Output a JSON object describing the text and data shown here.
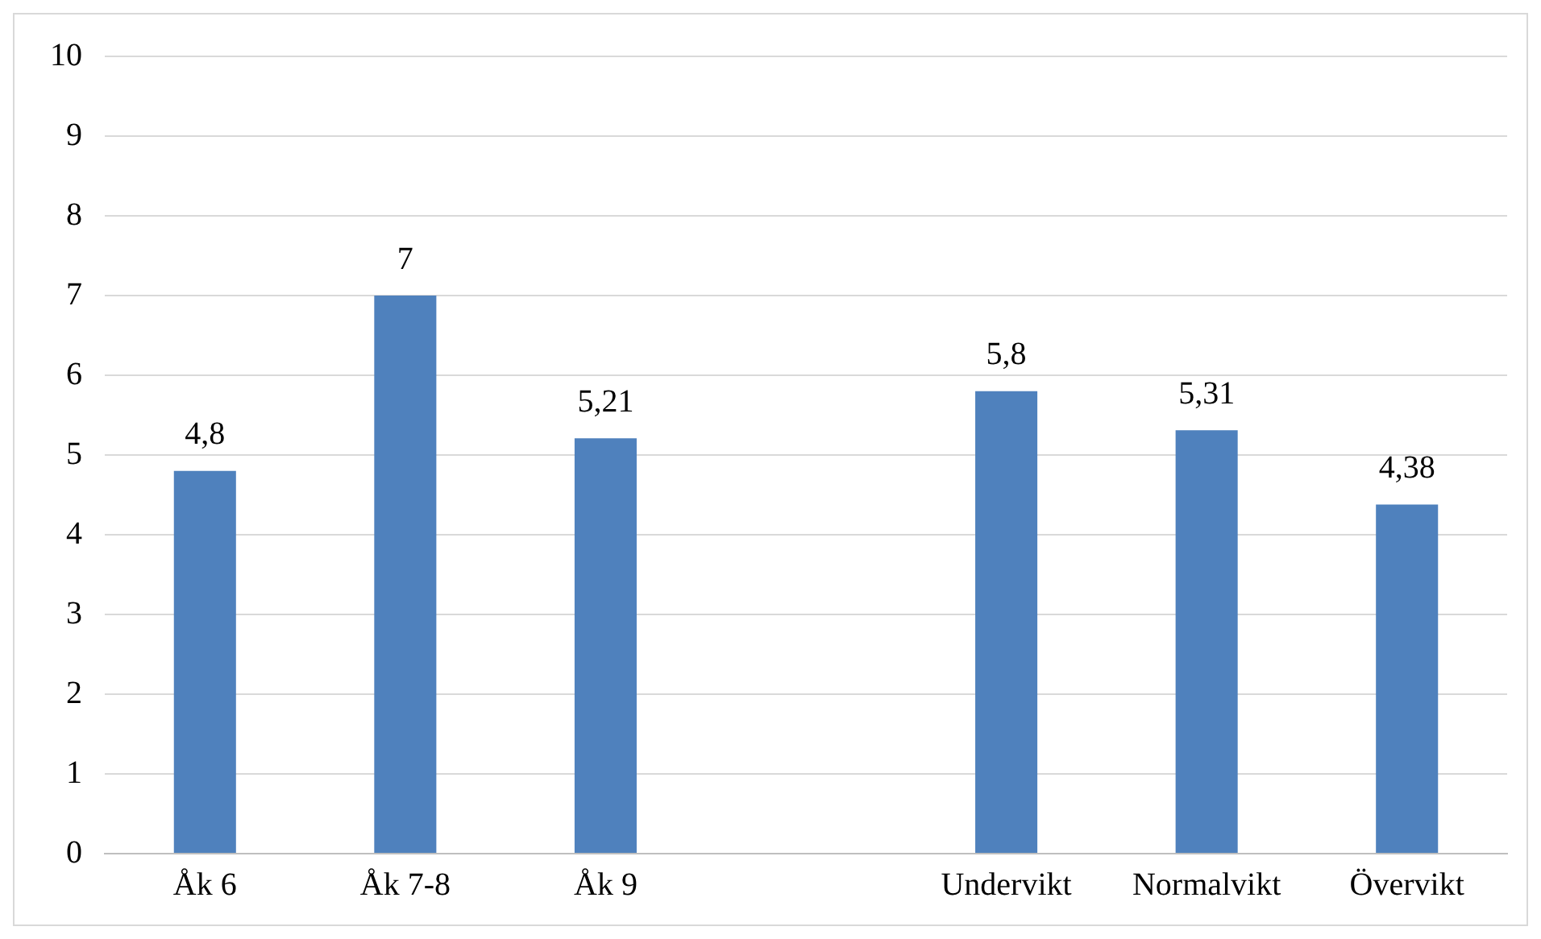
{
  "chart_data": {
    "type": "bar",
    "categories": [
      "Åk 6",
      "Åk 7-8",
      "Åk 9",
      null,
      "Undervikt",
      "Normalvikt",
      "Övervikt"
    ],
    "values": [
      4.8,
      7,
      5.21,
      null,
      5.8,
      5.31,
      4.38
    ],
    "value_labels": [
      "4,8",
      "7",
      "5,21",
      null,
      "5,8",
      "5,31",
      "4,38"
    ],
    "color": "#4f81bd",
    "ylim": [
      0,
      10
    ],
    "yticks": [
      0,
      1,
      2,
      3,
      4,
      5,
      6,
      7,
      8,
      9,
      10
    ],
    "grid": "y",
    "legend": false
  }
}
